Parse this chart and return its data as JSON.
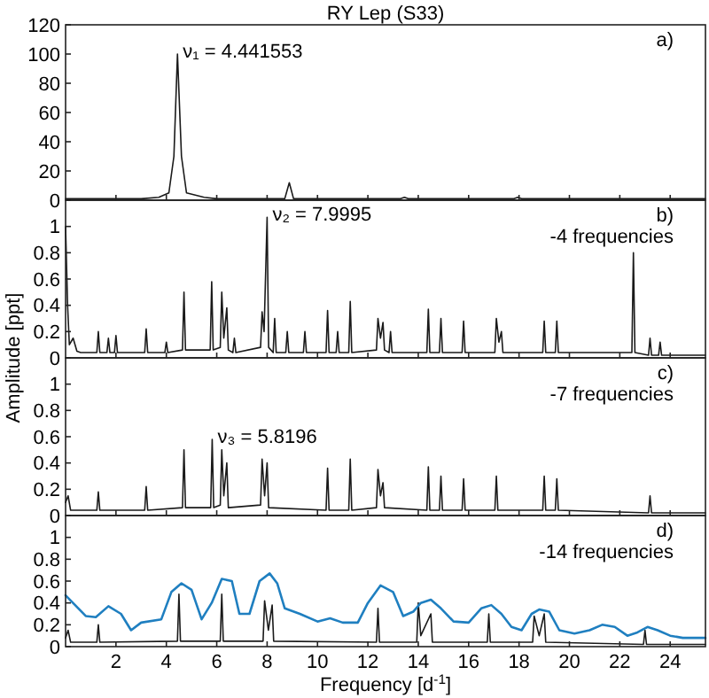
{
  "chart_data": [
    {
      "type": "line",
      "title": "RY Lep (S33)",
      "annotations": [
        "a)",
        {
          "text": "ν₁ = 4.441553",
          "x": 4.441553,
          "y": 100
        }
      ],
      "xlim": [
        0,
        25.4
      ],
      "xticks": [
        2,
        4,
        6,
        8,
        10,
        12,
        14,
        16,
        18,
        20,
        22,
        24
      ],
      "ylim": [
        0,
        120
      ],
      "yticks": [
        0,
        20,
        40,
        60,
        80,
        100,
        120
      ],
      "tick_labels": "y",
      "series": [
        {
          "color": "#1a1a1a",
          "x": [
            0,
            1,
            2,
            3,
            3.7,
            4.1,
            4.3,
            4.441553,
            4.6,
            4.8,
            5.5,
            6,
            8.7,
            8.88,
            9.05,
            13.3,
            13.45,
            13.6,
            17.8,
            17.95,
            18.1,
            25.4
          ],
          "values": [
            1,
            1,
            1,
            1,
            2,
            5,
            30,
            100,
            30,
            5,
            2,
            1,
            1,
            12,
            1,
            1,
            2,
            1,
            1,
            2,
            1,
            1
          ]
        }
      ]
    },
    {
      "type": "line",
      "ylabel": "Amplitude [ppt]",
      "annotations": [
        "b)",
        "-4 frequencies",
        {
          "text": "ν₂ = 7.9995",
          "x": 7.9995,
          "y": 1.07
        }
      ],
      "xlim": [
        0,
        25.4
      ],
      "xticks": [
        2,
        4,
        6,
        8,
        10,
        12,
        14,
        16,
        18,
        20,
        22,
        24
      ],
      "ylim": [
        0,
        1.2
      ],
      "yticks": [
        0,
        0.2,
        0.4,
        0.6,
        0.8,
        1
      ],
      "tick_labels": "y",
      "series": [
        {
          "color": "#1a1a1a",
          "x": [
            0,
            0.08,
            0.15,
            0.3,
            0.45,
            0.6,
            1.24,
            1.3,
            1.36,
            1.64,
            1.7,
            1.76,
            1.94,
            2.0,
            2.06,
            3.14,
            3.2,
            3.26,
            3.94,
            4.0,
            4.06,
            4.64,
            4.7,
            4.76,
            5.74,
            5.8,
            5.86,
            6.14,
            6.2,
            6.28,
            6.4,
            6.46,
            6.64,
            6.7,
            6.76,
            7.74,
            7.8,
            7.88,
            7.9995,
            8.06,
            8.24,
            8.3,
            8.36,
            8.74,
            8.8,
            8.86,
            9.44,
            9.5,
            9.56,
            10.34,
            10.4,
            10.46,
            10.74,
            10.8,
            10.86,
            11.24,
            11.3,
            11.36,
            12.34,
            12.4,
            12.5,
            12.6,
            12.66,
            12.84,
            12.9,
            12.96,
            14.34,
            14.4,
            14.46,
            14.84,
            14.9,
            14.96,
            15.74,
            15.8,
            15.86,
            17.04,
            17.1,
            17.2,
            17.3,
            17.36,
            18.94,
            19.0,
            19.06,
            19.44,
            19.5,
            19.56,
            22.48,
            22.54,
            22.6,
            23.14,
            23.2,
            23.26,
            23.54,
            23.6,
            23.66,
            25.4
          ],
          "values": [
            1.0,
            0.4,
            0.1,
            0.15,
            0.05,
            0.04,
            0.04,
            0.2,
            0.04,
            0.04,
            0.15,
            0.04,
            0.04,
            0.17,
            0.04,
            0.04,
            0.22,
            0.04,
            0.04,
            0.12,
            0.04,
            0.06,
            0.5,
            0.06,
            0.06,
            0.58,
            0.06,
            0.08,
            0.5,
            0.15,
            0.38,
            0.06,
            0.04,
            0.15,
            0.04,
            0.08,
            0.35,
            0.2,
            1.07,
            0.08,
            0.04,
            0.3,
            0.04,
            0.04,
            0.2,
            0.04,
            0.04,
            0.2,
            0.04,
            0.04,
            0.36,
            0.04,
            0.04,
            0.2,
            0.04,
            0.04,
            0.43,
            0.04,
            0.06,
            0.3,
            0.15,
            0.27,
            0.06,
            0.04,
            0.2,
            0.04,
            0.04,
            0.37,
            0.04,
            0.04,
            0.3,
            0.04,
            0.04,
            0.28,
            0.04,
            0.04,
            0.3,
            0.12,
            0.2,
            0.04,
            0.04,
            0.28,
            0.04,
            0.04,
            0.28,
            0.04,
            0.04,
            0.8,
            0.04,
            0.02,
            0.15,
            0.02,
            0.02,
            0.12,
            0.02,
            0.02
          ]
        }
      ]
    },
    {
      "type": "line",
      "annotations": [
        "c)",
        "-7 frequencies",
        {
          "text": "ν₃ = 5.8196",
          "x": 5.8196,
          "y": 0.58
        }
      ],
      "xlim": [
        0,
        25.4
      ],
      "xticks": [
        2,
        4,
        6,
        8,
        10,
        12,
        14,
        16,
        18,
        20,
        22,
        24
      ],
      "ylim": [
        0,
        1.2
      ],
      "yticks": [
        0,
        0.2,
        0.4,
        0.6,
        0.8,
        1
      ],
      "tick_labels": "y",
      "series": [
        {
          "color": "#1a1a1a",
          "x": [
            0,
            0.1,
            0.2,
            1.24,
            1.3,
            1.36,
            3.14,
            3.2,
            3.26,
            4.64,
            4.7,
            4.76,
            5.76,
            5.8196,
            5.88,
            6.14,
            6.2,
            6.28,
            6.4,
            6.46,
            7.74,
            7.8,
            7.9,
            8.0,
            8.06,
            10.34,
            10.4,
            10.46,
            11.24,
            11.3,
            11.36,
            12.34,
            12.4,
            12.5,
            12.6,
            12.66,
            14.34,
            14.4,
            14.46,
            14.84,
            14.9,
            14.96,
            15.74,
            15.8,
            15.86,
            17.04,
            17.1,
            17.16,
            18.94,
            19.0,
            19.06,
            19.44,
            19.5,
            19.56,
            23.14,
            23.2,
            23.26,
            25.4
          ],
          "values": [
            0.1,
            0.15,
            0.04,
            0.04,
            0.18,
            0.04,
            0.04,
            0.22,
            0.04,
            0.06,
            0.5,
            0.06,
            0.06,
            0.58,
            0.06,
            0.08,
            0.5,
            0.15,
            0.4,
            0.06,
            0.08,
            0.43,
            0.15,
            0.4,
            0.06,
            0.04,
            0.36,
            0.04,
            0.04,
            0.43,
            0.04,
            0.06,
            0.35,
            0.15,
            0.25,
            0.06,
            0.04,
            0.37,
            0.04,
            0.04,
            0.3,
            0.04,
            0.04,
            0.28,
            0.04,
            0.04,
            0.3,
            0.04,
            0.04,
            0.3,
            0.04,
            0.04,
            0.28,
            0.04,
            0.02,
            0.15,
            0.02,
            0.02
          ]
        }
      ]
    },
    {
      "type": "line",
      "xlabel": "Frequency [d$^{-1}$]",
      "annotations": [
        "d)",
        "-14 frequencies"
      ],
      "xlim": [
        0,
        25.4
      ],
      "xticks": [
        2,
        4,
        6,
        8,
        10,
        12,
        14,
        16,
        18,
        20,
        22,
        24
      ],
      "ylim": [
        0,
        1.2
      ],
      "yticks": [
        0,
        0.2,
        0.4,
        0.6,
        0.8,
        1
      ],
      "series": [
        {
          "color": "#1a1a1a",
          "x": [
            0,
            0.1,
            0.2,
            1.24,
            1.3,
            1.36,
            4.44,
            4.5,
            4.56,
            6.14,
            6.2,
            6.26,
            7.84,
            7.9,
            8.05,
            8.2,
            8.26,
            12.34,
            12.4,
            12.46,
            13.94,
            14.0,
            14.1,
            14.5,
            14.56,
            16.74,
            16.8,
            16.86,
            18.54,
            18.6,
            18.8,
            19.0,
            19.06,
            22.94,
            23.0,
            23.06,
            25.4
          ],
          "values": [
            0.08,
            0.15,
            0.04,
            0.04,
            0.2,
            0.04,
            0.05,
            0.48,
            0.05,
            0.05,
            0.48,
            0.05,
            0.05,
            0.42,
            0.15,
            0.38,
            0.05,
            0.04,
            0.35,
            0.04,
            0.04,
            0.4,
            0.1,
            0.3,
            0.04,
            0.04,
            0.3,
            0.04,
            0.04,
            0.28,
            0.1,
            0.3,
            0.04,
            0.02,
            0.15,
            0.02,
            0.02
          ]
        },
        {
          "color": "#1f7fc0",
          "x": [
            0,
            0.8,
            1.2,
            1.7,
            2.2,
            2.6,
            3.0,
            3.8,
            4.2,
            4.6,
            5.0,
            5.4,
            5.8,
            6.2,
            6.6,
            6.9,
            7.3,
            7.7,
            8.1,
            8.4,
            8.7,
            9.3,
            10.0,
            10.5,
            11.0,
            11.6,
            12.0,
            12.5,
            13.0,
            13.4,
            13.8,
            14.1,
            14.5,
            14.9,
            15.4,
            16.0,
            16.5,
            16.9,
            17.3,
            17.7,
            18.1,
            18.5,
            18.8,
            19.2,
            19.6,
            20.2,
            20.8,
            21.3,
            21.8,
            22.3,
            22.7,
            23.1,
            23.5,
            24.0,
            24.5,
            25.4
          ],
          "values": [
            0.47,
            0.28,
            0.27,
            0.37,
            0.3,
            0.15,
            0.22,
            0.25,
            0.5,
            0.58,
            0.52,
            0.25,
            0.4,
            0.62,
            0.6,
            0.3,
            0.3,
            0.6,
            0.67,
            0.58,
            0.35,
            0.3,
            0.23,
            0.26,
            0.22,
            0.22,
            0.4,
            0.56,
            0.5,
            0.28,
            0.32,
            0.4,
            0.43,
            0.35,
            0.23,
            0.22,
            0.35,
            0.38,
            0.3,
            0.18,
            0.15,
            0.3,
            0.34,
            0.32,
            0.15,
            0.12,
            0.15,
            0.2,
            0.18,
            0.1,
            0.13,
            0.18,
            0.15,
            0.1,
            0.08,
            0.08
          ]
        }
      ]
    }
  ]
}
